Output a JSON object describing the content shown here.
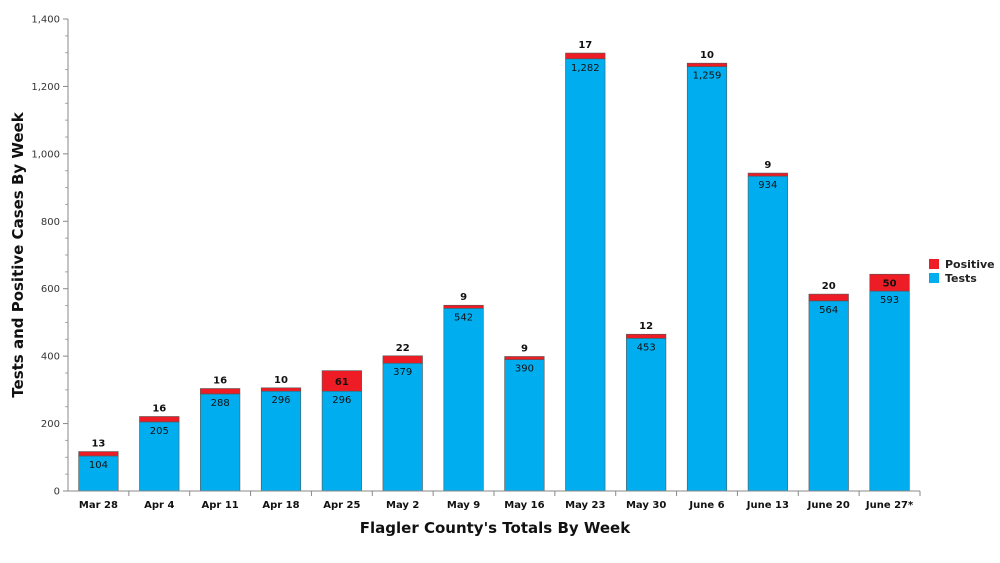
{
  "chart_data": {
    "type": "bar",
    "stacked": true,
    "title": "",
    "xlabel": "Flagler County's Totals By Week",
    "ylabel": "Tests and Positive Cases By Week",
    "ylim": [
      0,
      1400
    ],
    "yticks": [
      0,
      200,
      400,
      600,
      800,
      1000,
      1200,
      1400
    ],
    "ytick_labels": [
      "0",
      "200",
      "400",
      "600",
      "800",
      "1,000",
      "1,200",
      "1,400"
    ],
    "grid": false,
    "legend_position": "right",
    "categories": [
      "Mar 28",
      "Apr 4",
      "Apr 11",
      "Apr 18",
      "Apr 25",
      "May 2",
      "May 9",
      "May 16",
      "May 23",
      "May 30",
      "June 6",
      "June 13",
      "June 20",
      "June 27*"
    ],
    "series": [
      {
        "name": "Tests",
        "color": "#00aeef",
        "values": [
          104,
          205,
          288,
          296,
          296,
          379,
          542,
          390,
          1282,
          453,
          1259,
          934,
          564,
          593
        ],
        "labels": [
          "104",
          "205",
          "288",
          "296",
          "296",
          "379",
          "542",
          "390",
          "1,282",
          "453",
          "1,259",
          "934",
          "564",
          "593"
        ]
      },
      {
        "name": "Positive",
        "color": "#ee1c25",
        "values": [
          13,
          16,
          16,
          10,
          61,
          22,
          9,
          9,
          17,
          12,
          10,
          9,
          20,
          50
        ],
        "labels": [
          "13",
          "16",
          "16",
          "10",
          "61",
          "22",
          "9",
          "9",
          "17",
          "12",
          "10",
          "9",
          "20",
          "50"
        ]
      }
    ]
  }
}
